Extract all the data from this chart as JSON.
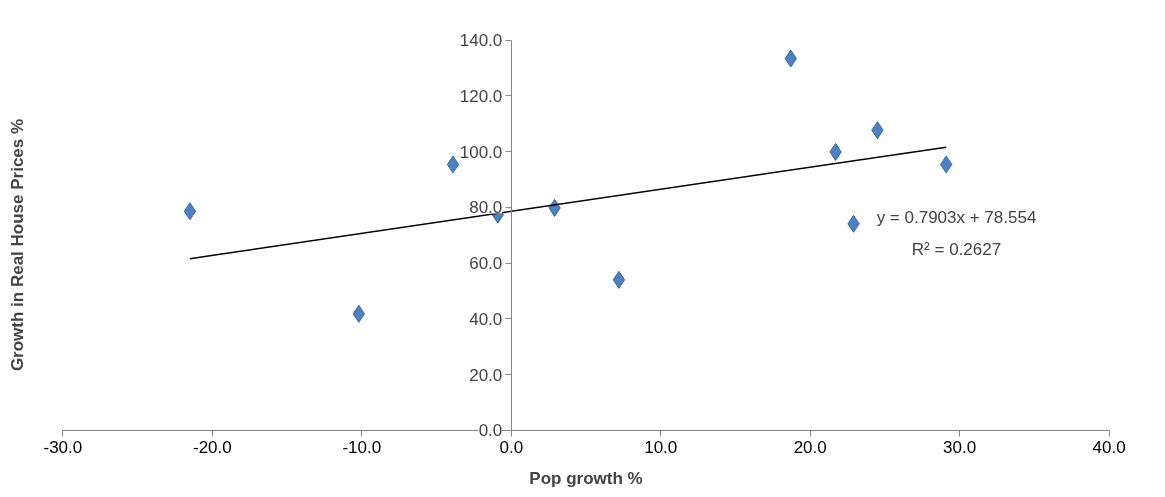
{
  "chart_data": {
    "type": "scatter",
    "xlabel": "Pop growth %",
    "ylabel": "Growth in Real House Prices %",
    "series": [
      {
        "type": "scatter",
        "color": "#4f81bd",
        "marker": "diamond",
        "x": [
          -21.5,
          -10.2,
          -3.9,
          -0.9,
          2.9,
          7.2,
          18.7,
          21.7,
          22.9,
          24.5,
          29.1
        ],
        "values": [
          78.6,
          41.8,
          95.4,
          77.4,
          79.8,
          54.0,
          133.4,
          99.9,
          74.1,
          107.7,
          95.4
        ]
      },
      {
        "type": "line",
        "color": "#000000",
        "marker": "none",
        "line_style": "solid",
        "x": [
          -21.5,
          29.1
        ],
        "values": [
          61.6,
          101.6
        ]
      }
    ],
    "xlim": [
      -30,
      40
    ],
    "ylim": [
      0,
      140
    ],
    "xticks": [
      {
        "value": -30,
        "label": "-30.0"
      },
      {
        "value": -20,
        "label": "-20.0"
      },
      {
        "value": -10,
        "label": "-10.0"
      },
      {
        "value": 0,
        "label": "0.0"
      },
      {
        "value": 10,
        "label": "10.0"
      },
      {
        "value": 20,
        "label": "20.0"
      },
      {
        "value": 30,
        "label": "30.0"
      },
      {
        "value": 40,
        "label": "40.0"
      }
    ],
    "yticks": [
      {
        "value": 0,
        "label": "0.0"
      },
      {
        "value": 20,
        "label": "20.0"
      },
      {
        "value": 40,
        "label": "40.0"
      },
      {
        "value": 60,
        "label": "60.0"
      },
      {
        "value": 80,
        "label": "80.0"
      },
      {
        "value": 100,
        "label": "100.0"
      },
      {
        "value": 120,
        "label": "120.0"
      },
      {
        "value": 140,
        "label": "140.0"
      }
    ],
    "annotations": [
      "y = 0.7903x + 78.554",
      "R² = 0.2627"
    ],
    "grid": false
  }
}
